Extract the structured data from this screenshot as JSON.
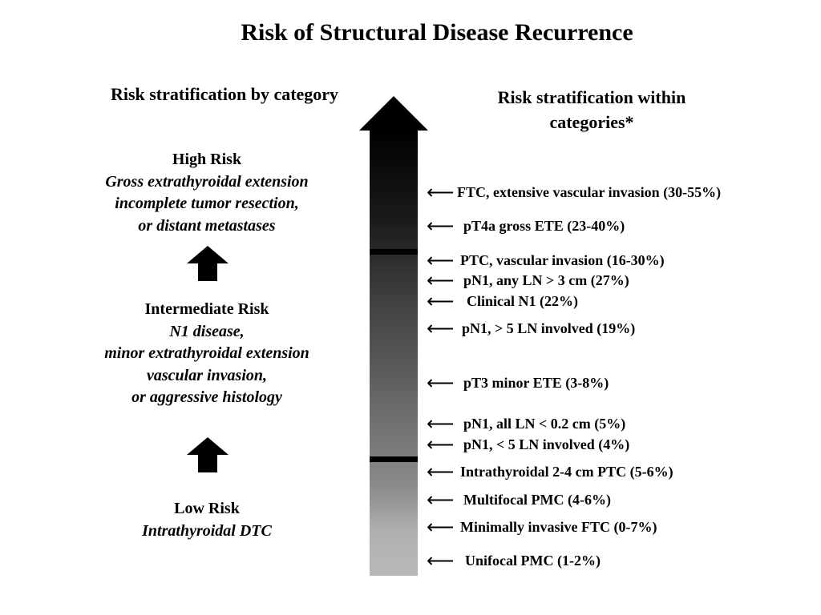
{
  "title": "Risk of Structural Disease Recurrence",
  "left_heading": "Risk stratification by category",
  "right_heading_line1": "Risk stratification within",
  "right_heading_line2": "categories*",
  "categories": {
    "high": {
      "name": "High Risk",
      "desc_line1": "Gross extrathyroidal extension",
      "desc_line2": "incomplete tumor resection,",
      "desc_line3": "or distant metastases"
    },
    "intermediate": {
      "name": "Intermediate Risk",
      "desc_line1": "N1 disease,",
      "desc_line2": "minor extrathyroidal extension",
      "desc_line3": "vascular invasion,",
      "desc_line4": "or aggressive histology"
    },
    "low": {
      "name": "Low Risk",
      "desc_line1": "Intrathyroidal DTC"
    }
  },
  "arrow_glyph": "⟵",
  "items": [
    "FTC, extensive vascular invasion (30-55%)",
    "pT4a gross ETE (23-40%)",
    "PTC, vascular invasion (16-30%)",
    "pN1, any LN > 3 cm (27%)",
    "Clinical N1 (22%)",
    "pN1, > 5 LN involved (19%)",
    "pT3 minor ETE (3-8%)",
    "pN1, all LN < 0.2 cm (5%)",
    "pN1, < 5 LN involved (4%)",
    "Intrathyroidal 2-4 cm PTC (5-6%)",
    "Multifocal PMC (4-6%)",
    "Minimally invasive FTC (0-7%)",
    "Unifocal PMC (1-2%)"
  ],
  "colors": {
    "bar_top": "#000000",
    "bar_bottom": "#b8b8b8",
    "text": "#000000"
  }
}
